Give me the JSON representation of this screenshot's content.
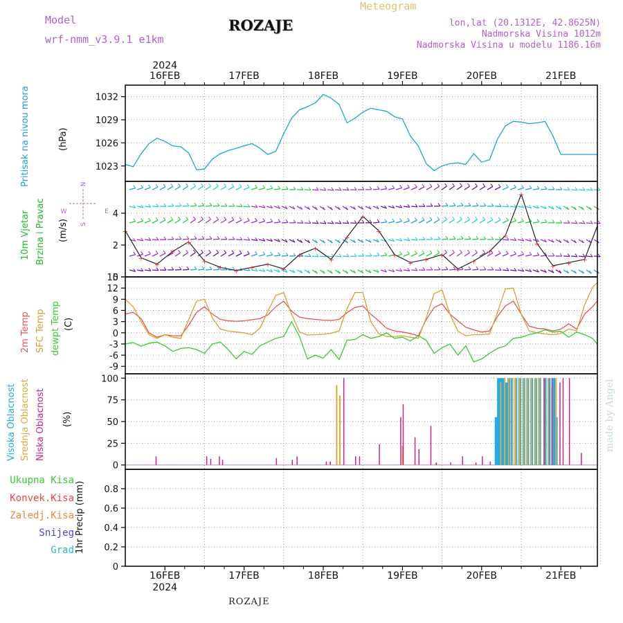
{
  "header": {
    "model_label": "Model",
    "model_name": "wrf-nmm_v3.9.1 e1km",
    "title": "ROZAJE",
    "meteogram_label": "Meteogram",
    "lonlat": "lon,lat (20.1312E, 42.8625N)",
    "elevation": "Nadmorska Visina 1012m",
    "model_elevation": "Nadmorska Visina u modelu 1186.16m"
  },
  "footer": {
    "station": "ROZAJE",
    "watermark": "made by Angel"
  },
  "time_axis": {
    "year": "2024",
    "days": [
      "16FEB",
      "17FEB",
      "18FEB",
      "19FEB",
      "20FEB",
      "21FEB"
    ]
  },
  "panels": {
    "pressure": {
      "label": "Pritisak na nivou mora",
      "unit": "(hPa)",
      "color": "#1aa3e0"
    },
    "wind": {
      "label_line1": "10m Vjetar",
      "label_line2": "Brzina i Pravac",
      "unit": "(m/s)",
      "compass": {
        "n": "N",
        "s": "S",
        "w": "W",
        "e": "E"
      },
      "color": "#22cc22"
    },
    "temp": {
      "label_2m": "2m Temp",
      "label_sfc": "SFC Temp",
      "label_dewpt": "dewpt Temp",
      "unit": "(C)",
      "colors": {
        "t2m": "#ee5050",
        "sfc": "#daa030",
        "dewpt": "#33cc33"
      }
    },
    "cloud": {
      "label_high": "Visoka Oblacnost",
      "label_mid": "Srednja Oblacnost",
      "label_low": "Niska Oblacnost",
      "unit": "(%)",
      "colors": {
        "high": "#22aaee",
        "mid": "#ddaa33",
        "low": "#cc2288"
      }
    },
    "precip": {
      "unit": "1hr Precip (mm)",
      "legend": [
        {
          "label": "Ukupna Kisa",
          "color": "#33cc33"
        },
        {
          "label": "Konvek.Kisa",
          "color": "#ee4444"
        },
        {
          "label": "Zaledj.Kisa",
          "color": "#ee8833"
        },
        {
          "label": "Snijeg",
          "color": "#4444dd"
        },
        {
          "label": "Grad",
          "color": "#22bbbb"
        }
      ]
    }
  },
  "chart_data": [
    {
      "type": "line",
      "title": "",
      "ylabel": "(hPa)",
      "ylim": [
        1021,
        1033.5
      ],
      "yticks": [
        1023,
        1026,
        1029,
        1032
      ],
      "x_unit": "days from 16FEB 00",
      "series": [
        {
          "name": "Pritisak na nivou mora",
          "x": [
            -0.5,
            -0.4,
            -0.3,
            -0.2,
            -0.1,
            0.0,
            0.1,
            0.2,
            0.3,
            0.4,
            0.5,
            0.6,
            0.7,
            0.8,
            0.9,
            1.0,
            1.1,
            1.2,
            1.3,
            1.4,
            1.5,
            1.6,
            1.7,
            1.8,
            1.9,
            2.0,
            2.1,
            2.2,
            2.3,
            2.4,
            2.5,
            2.6,
            2.7,
            2.8,
            2.9,
            3.0,
            3.1,
            3.2,
            3.3,
            3.4,
            3.5,
            3.6,
            3.7,
            3.8,
            3.9,
            4.0,
            4.1,
            4.2,
            4.3,
            4.4,
            4.5,
            4.6,
            4.7,
            4.8,
            4.9,
            5.0,
            5.1,
            5.2,
            5.3,
            5.4,
            5.5
          ],
          "values": [
            1023.2,
            1022.9,
            1024.6,
            1025.9,
            1026.6,
            1026.2,
            1025.6,
            1025.5,
            1024.7,
            1022.5,
            1022.6,
            1023.9,
            1024.6,
            1025.0,
            1025.3,
            1025.6,
            1025.9,
            1025.3,
            1024.5,
            1024.9,
            1027.2,
            1029.2,
            1030.3,
            1030.7,
            1031.2,
            1032.3,
            1031.8,
            1031.0,
            1028.6,
            1029.2,
            1030.0,
            1030.5,
            1030.3,
            1030.1,
            1029.4,
            1029.1,
            1026.9,
            1025.6,
            1023.3,
            1022.4,
            1023.0,
            1023.3,
            1023.4,
            1023.2,
            1024.6,
            1023.5,
            1023.8,
            1026.5,
            1028.2,
            1028.8,
            1028.7,
            1028.5,
            1028.6,
            1028.8,
            1026.9,
            1024.5,
            1024.5,
            1024.5,
            1024.5,
            1024.5,
            1024.5
          ]
        }
      ]
    },
    {
      "type": "line",
      "title": "",
      "ylabel": "(m/s)",
      "ylim": [
        0,
        6
      ],
      "yticks": [
        0,
        2,
        4
      ],
      "x_unit": "days from 16FEB 00",
      "series": [
        {
          "name": "10m Vjetar",
          "x": [
            -0.5,
            -0.3,
            -0.1,
            0.1,
            0.3,
            0.5,
            0.7,
            0.9,
            1.1,
            1.3,
            1.5,
            1.7,
            1.9,
            2.1,
            2.3,
            2.5,
            2.7,
            2.9,
            3.1,
            3.3,
            3.5,
            3.7,
            3.9,
            4.1,
            4.3,
            4.5,
            4.7,
            4.9,
            5.1,
            5.3,
            5.5
          ],
          "values": [
            2.9,
            1.2,
            0.8,
            1.6,
            2.2,
            1.0,
            0.6,
            0.4,
            0.6,
            0.8,
            0.5,
            1.4,
            1.8,
            1.1,
            2.5,
            3.8,
            2.9,
            1.4,
            0.9,
            1.1,
            1.4,
            0.5,
            1.0,
            1.6,
            2.6,
            5.2,
            2.1,
            0.7,
            0.9,
            1.1,
            3.2
          ]
        }
      ]
    },
    {
      "type": "line",
      "title": "",
      "ylabel": "(C)",
      "ylim": [
        -11,
        15
      ],
      "yticks": [
        -9,
        -6,
        -3,
        0,
        3,
        6,
        9,
        12,
        15
      ],
      "x_unit": "days from 16FEB 00",
      "series": [
        {
          "name": "2m Temp",
          "x": [
            -0.5,
            -0.4,
            -0.3,
            -0.2,
            -0.1,
            0.0,
            0.1,
            0.2,
            0.3,
            0.4,
            0.5,
            0.6,
            0.7,
            0.8,
            0.9,
            1.0,
            1.1,
            1.2,
            1.3,
            1.4,
            1.5,
            1.6,
            1.7,
            1.8,
            1.9,
            2.0,
            2.1,
            2.2,
            2.3,
            2.4,
            2.5,
            2.6,
            2.7,
            2.8,
            2.9,
            3.0,
            3.1,
            3.2,
            3.3,
            3.4,
            3.5,
            3.6,
            3.7,
            3.8,
            3.9,
            4.0,
            4.1,
            4.2,
            4.3,
            4.4,
            4.5,
            4.6,
            4.7,
            4.8,
            4.9,
            5.0,
            5.1,
            5.2,
            5.3,
            5.4,
            5.5
          ],
          "values": [
            5.0,
            5.5,
            3.8,
            0.0,
            -1.2,
            -0.5,
            -0.8,
            -0.8,
            2.0,
            5.5,
            7.0,
            5.0,
            3.6,
            3.2,
            3.1,
            3.2,
            3.5,
            3.8,
            4.8,
            7.0,
            8.5,
            5.8,
            4.2,
            3.8,
            3.6,
            3.4,
            3.3,
            3.6,
            5.4,
            6.8,
            7.2,
            5.0,
            3.2,
            1.2,
            0.5,
            0.2,
            -0.2,
            -0.8,
            3.5,
            6.8,
            7.8,
            5.0,
            3.2,
            1.5,
            0.8,
            0.2,
            0.5,
            4.4,
            7.2,
            8.5,
            5.0,
            1.8,
            1.2,
            1.0,
            0.5,
            1.0,
            2.4,
            1.0,
            5.0,
            7.0,
            8.6
          ]
        },
        {
          "name": "SFC Temp",
          "x": [
            -0.5,
            -0.4,
            -0.3,
            -0.2,
            -0.1,
            0.0,
            0.1,
            0.2,
            0.3,
            0.4,
            0.5,
            0.6,
            0.7,
            0.8,
            0.9,
            1.0,
            1.1,
            1.2,
            1.3,
            1.4,
            1.5,
            1.6,
            1.7,
            1.8,
            1.9,
            2.0,
            2.1,
            2.2,
            2.3,
            2.4,
            2.5,
            2.6,
            2.7,
            2.8,
            2.9,
            3.0,
            3.1,
            3.2,
            3.3,
            3.4,
            3.5,
            3.6,
            3.7,
            3.8,
            3.9,
            4.0,
            4.1,
            4.2,
            4.3,
            4.4,
            4.5,
            4.6,
            4.7,
            4.8,
            4.9,
            5.0,
            5.1,
            5.2,
            5.3,
            5.4,
            5.5
          ],
          "values": [
            9.0,
            7.0,
            3.0,
            -0.5,
            -1.5,
            -0.5,
            -1.2,
            -1.5,
            3.5,
            8.5,
            9.0,
            4.0,
            1.0,
            0.5,
            0.2,
            0.0,
            -0.5,
            1.2,
            5.8,
            10.0,
            10.8,
            5.0,
            0.2,
            -0.6,
            -0.5,
            -0.4,
            -0.1,
            0.5,
            6.5,
            10.8,
            10.8,
            3.0,
            -0.2,
            -1.0,
            -1.0,
            -0.8,
            -1.2,
            -1.5,
            4.0,
            10.5,
            11.5,
            5.0,
            0.4,
            -0.8,
            -0.5,
            -0.5,
            -0.3,
            5.5,
            11.8,
            12.0,
            5.0,
            0.5,
            0.0,
            -0.3,
            -0.5,
            -0.2,
            1.0,
            0.5,
            7.5,
            12.2,
            13.5
          ]
        },
        {
          "name": "dewpt Temp",
          "x": [
            -0.5,
            -0.4,
            -0.3,
            -0.2,
            -0.1,
            0.0,
            0.1,
            0.2,
            0.3,
            0.4,
            0.5,
            0.6,
            0.7,
            0.8,
            0.9,
            1.0,
            1.1,
            1.2,
            1.3,
            1.4,
            1.5,
            1.6,
            1.7,
            1.8,
            1.9,
            2.0,
            2.1,
            2.2,
            2.3,
            2.4,
            2.5,
            2.6,
            2.7,
            2.8,
            2.9,
            3.0,
            3.1,
            3.2,
            3.3,
            3.4,
            3.5,
            3.6,
            3.7,
            3.8,
            3.9,
            4.0,
            4.1,
            4.2,
            4.3,
            4.4,
            4.5,
            4.6,
            4.7,
            4.8,
            4.9,
            5.0,
            5.1,
            5.2,
            5.3,
            5.4,
            5.5
          ],
          "values": [
            -3.0,
            -2.6,
            -3.6,
            -2.8,
            -2.5,
            -3.5,
            -5.0,
            -4.2,
            -4.0,
            -4.5,
            -5.5,
            -3.0,
            -2.5,
            -4.5,
            -7.0,
            -5.0,
            -5.8,
            -3.5,
            -2.5,
            -1.5,
            -1.0,
            3.0,
            -1.0,
            -7.0,
            -6.0,
            -6.8,
            -4.5,
            -7.2,
            -2.0,
            -1.8,
            -0.5,
            -1.5,
            -1.0,
            0.0,
            -1.5,
            -1.2,
            -2.2,
            -0.8,
            -2.0,
            -5.5,
            -4.0,
            -3.0,
            -6.0,
            -3.5,
            -7.8,
            -7.0,
            -5.5,
            -4.2,
            -3.5,
            -1.5,
            -1.2,
            -0.5,
            0.0,
            0.8,
            0.2,
            0.4,
            -1.2,
            0.2,
            -0.5,
            -1.5,
            -3.0
          ]
        }
      ]
    },
    {
      "type": "bar",
      "title": "",
      "ylabel": "(%)",
      "ylim": [
        -5,
        105
      ],
      "yticks": [
        0,
        25,
        50,
        75,
        100
      ],
      "x_unit": "days from 16FEB 00",
      "series": [
        {
          "name": "Visoka Oblacnost",
          "x": [
            4.2,
            4.23,
            4.25,
            4.27,
            4.3,
            4.33,
            4.36,
            4.4,
            4.45,
            4.5,
            4.55,
            4.6,
            4.65,
            4.7,
            4.75,
            4.82,
            4.87,
            4.93,
            4.96
          ],
          "values": [
            55,
            100,
            100,
            100,
            100,
            95,
            100,
            100,
            100,
            100,
            100,
            100,
            100,
            100,
            100,
            100,
            100,
            100,
            55
          ]
        },
        {
          "name": "Srednja Oblacnost",
          "x": [
            2.17,
            2.21,
            3.0,
            3.42,
            4.24,
            4.29,
            4.34,
            4.39,
            4.43,
            4.48,
            4.53,
            4.58,
            4.63,
            4.68,
            4.73,
            4.79,
            4.84,
            4.89,
            4.94
          ],
          "values": [
            92,
            80,
            22,
            2,
            95,
            100,
            100,
            100,
            100,
            100,
            100,
            100,
            100,
            100,
            100,
            100,
            100,
            90,
            100
          ]
        },
        {
          "name": "Niska Oblacnost",
          "x": [
            -0.12,
            0.52,
            0.57,
            0.68,
            0.72,
            1.4,
            1.6,
            1.66,
            2.03,
            2.08,
            2.25,
            2.4,
            2.45,
            2.7,
            2.97,
            3.0,
            3.15,
            3.2,
            3.35,
            3.42,
            3.6,
            3.75,
            3.92,
            4.0,
            4.1,
            4.78,
            4.88,
            4.98,
            5.02,
            5.1,
            5.25
          ],
          "values": [
            10,
            10,
            7,
            10,
            6,
            8,
            6,
            10,
            4,
            4,
            100,
            10,
            10,
            24,
            55,
            70,
            32,
            18,
            45,
            3,
            3,
            10,
            3,
            10,
            4,
            100,
            100,
            95,
            100,
            100,
            14
          ]
        }
      ]
    },
    {
      "type": "bar",
      "title": "",
      "ylabel": "1hr Precip (mm)",
      "ylim": [
        0,
        1.0
      ],
      "yticks": [
        0.0,
        0.2,
        0.4,
        0.6,
        0.8
      ],
      "series": []
    }
  ]
}
